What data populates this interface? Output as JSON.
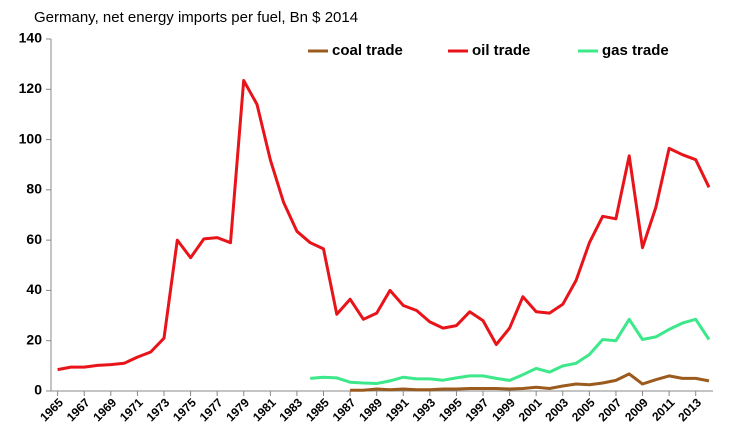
{
  "chart_data": {
    "type": "line",
    "title": "Germany, net energy imports per fuel, Bn $ 2014",
    "x": [
      1965,
      1966,
      1967,
      1968,
      1969,
      1970,
      1971,
      1972,
      1973,
      1974,
      1975,
      1976,
      1977,
      1978,
      1979,
      1980,
      1981,
      1982,
      1983,
      1984,
      1985,
      1986,
      1987,
      1988,
      1989,
      1990,
      1991,
      1992,
      1993,
      1994,
      1995,
      1996,
      1997,
      1998,
      1999,
      2000,
      2001,
      2002,
      2003,
      2004,
      2005,
      2006,
      2007,
      2008,
      2009,
      2010,
      2011,
      2012,
      2013,
      2014
    ],
    "series": [
      {
        "name": "coal trade",
        "color": "#9c5b1e",
        "values": [
          null,
          null,
          null,
          null,
          null,
          null,
          null,
          null,
          null,
          null,
          null,
          null,
          null,
          null,
          null,
          null,
          null,
          null,
          null,
          null,
          null,
          null,
          0.3,
          0.3,
          0.8,
          0.5,
          0.8,
          0.5,
          0.5,
          0.8,
          0.8,
          1,
          1,
          1,
          0.8,
          1,
          1.5,
          1,
          2,
          2.8,
          2.5,
          3.2,
          4.2,
          6.8,
          2.8,
          4.5,
          6,
          5,
          5,
          4
        ]
      },
      {
        "name": "oil trade",
        "color": "#e8141a",
        "values": [
          8.5,
          9.5,
          9.5,
          10.2,
          10.5,
          11,
          13.5,
          15.5,
          21,
          60,
          53,
          60.5,
          61,
          59,
          123.5,
          114,
          92,
          75,
          63.5,
          59,
          56.5,
          30.5,
          36.5,
          28.5,
          31,
          40,
          34,
          32,
          27.5,
          25,
          26,
          31.5,
          28,
          18.5,
          25,
          37.5,
          31.5,
          31,
          34.5,
          44,
          59,
          69.5,
          68.5,
          93.5,
          57,
          73,
          96.5,
          94,
          92,
          81
        ]
      },
      {
        "name": "gas trade",
        "color": "#3de88a",
        "values": [
          null,
          null,
          null,
          null,
          null,
          null,
          null,
          null,
          null,
          null,
          null,
          null,
          null,
          null,
          null,
          null,
          null,
          null,
          null,
          5,
          5.5,
          5.2,
          3.5,
          3.2,
          3,
          4,
          5.5,
          4.8,
          4.8,
          4.3,
          5.2,
          6,
          6,
          5,
          4.2,
          6.5,
          9,
          7.5,
          10,
          11,
          14.5,
          20.5,
          20,
          28.5,
          20.5,
          21.5,
          24.5,
          27,
          28.5,
          20.5
        ]
      }
    ],
    "xlim": [
      1964.5,
      2014
    ],
    "xticks": [
      1965,
      1967,
      1969,
      1971,
      1973,
      1975,
      1977,
      1979,
      1981,
      1983,
      1985,
      1987,
      1989,
      1991,
      1993,
      1995,
      1997,
      1999,
      2001,
      2003,
      2005,
      2007,
      2009,
      2011,
      2013
    ],
    "ylim": [
      0,
      140
    ],
    "yticks": [
      0,
      20,
      40,
      60,
      80,
      100,
      120,
      140
    ],
    "grid": false,
    "legend": "top"
  }
}
